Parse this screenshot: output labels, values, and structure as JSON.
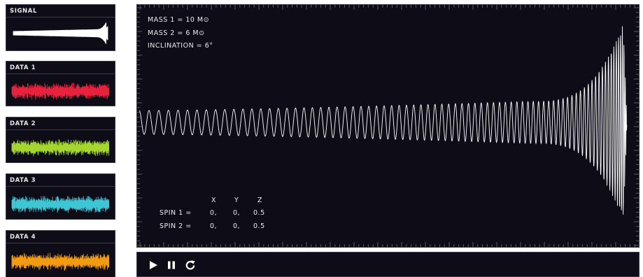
{
  "panels": [
    {
      "label": "SIGNAL",
      "color": "#ffffff"
    },
    {
      "label": "DATA 1",
      "color": "#e8213c"
    },
    {
      "label": "DATA 2",
      "color": "#a5d630"
    },
    {
      "label": "DATA 3",
      "color": "#3fc6d4"
    },
    {
      "label": "DATA 4",
      "color": "#f29a12"
    }
  ],
  "params": {
    "mass1": "MASS 1 = 10 M⊙",
    "mass2": "MASS 2 = 6 M⊙",
    "inclination": "INCLINATION = 6°"
  },
  "spin": {
    "headers": [
      "X",
      "Y",
      "Z"
    ],
    "rows": [
      {
        "label": "SPIN 1 =",
        "x": "0,",
        "y": "0,",
        "z": "0.5"
      },
      {
        "label": "SPIN 2 =",
        "x": "0,",
        "y": "0,",
        "z": "0.5"
      }
    ]
  },
  "controls": {
    "play": "play-icon",
    "pause": "pause-icon",
    "reset": "reset-icon"
  },
  "colors": {
    "background": "#0d0c17",
    "border": "#3a3a48",
    "waveform": "#ffffff"
  }
}
